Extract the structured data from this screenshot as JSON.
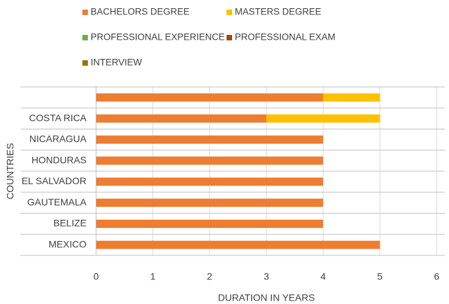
{
  "chart_data": {
    "type": "stacked-barh",
    "categories": [
      null,
      "COSTA RICA",
      "NICARAGUA",
      "HONDURAS",
      "EL SALVADOR",
      "GAUTEMALA",
      "BELIZE",
      "MEXICO"
    ],
    "series": [
      {
        "name": "BACHELORS DEGREE",
        "color": "#ed7d31",
        "values": [
          4,
          3,
          4,
          4,
          4,
          4,
          4,
          5
        ]
      },
      {
        "name": "MASTERS DEGREE",
        "color": "#ffc000",
        "values": [
          1,
          2,
          0,
          0,
          0,
          0,
          0,
          0
        ]
      },
      {
        "name": "PROFESSIONAL EXPERIENCE",
        "color": "#70ad47",
        "values": [
          0,
          0,
          0,
          0,
          0,
          0,
          0,
          0
        ]
      },
      {
        "name": "PROFESSIONAL EXAM",
        "color": "#9e480e",
        "values": [
          0,
          0,
          0,
          0,
          0,
          0,
          0,
          0
        ]
      },
      {
        "name": "INTERVIEW",
        "color": "#997300",
        "values": [
          0,
          0,
          0,
          0,
          0,
          0,
          0,
          0
        ]
      }
    ],
    "xlabel": "DURATION IN YEARS",
    "ylabel": "COUNTRIES",
    "xlim": [
      0,
      6
    ],
    "xticks": [
      0,
      1,
      2,
      3,
      4,
      5,
      6
    ],
    "grid": true,
    "legend": "top"
  }
}
